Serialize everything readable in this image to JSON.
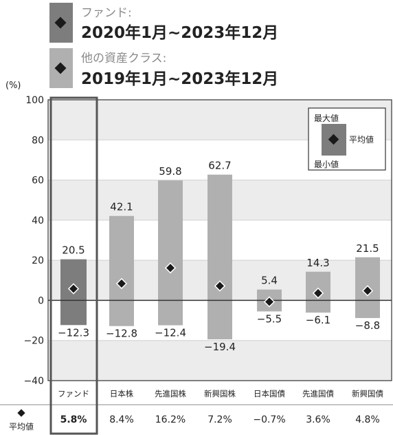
{
  "legend_top": {
    "fund_label": "ファンド:",
    "fund_period": "2020年1月~2023年12月",
    "other_label": "他の資産クラス:",
    "other_period": "2019年1月~2023年12月"
  },
  "legend_box": {
    "max_label": "最大値",
    "avg_label": "平均値",
    "min_label": "最小値"
  },
  "avg_row_label": "平均値",
  "colors": {
    "fund_bar": "#7d7d7d",
    "other_bar": "#b0b0b0",
    "marker": "#1a1a1a",
    "highlight_border": "#555555",
    "band": "#ececec"
  },
  "chart_data": {
    "type": "bar",
    "ylabel": "(%)",
    "ylim": [
      -40,
      100
    ],
    "yticks": [
      "100",
      "80",
      "60",
      "40",
      "20",
      "0",
      "−20",
      "−40"
    ],
    "categories": [
      "ファンド",
      "日本株",
      "先進国株",
      "新興国株",
      "日本国債",
      "先進国債",
      "新興国債"
    ],
    "max": [
      20.5,
      42.1,
      59.8,
      62.7,
      5.4,
      14.3,
      21.5
    ],
    "min": [
      -12.3,
      -12.8,
      -12.4,
      -19.4,
      -5.5,
      -6.1,
      -8.8
    ],
    "avg": [
      5.8,
      8.4,
      16.2,
      7.2,
      -0.7,
      3.6,
      4.8
    ],
    "max_labels": [
      "20.5",
      "42.1",
      "59.8",
      "62.7",
      "5.4",
      "14.3",
      "21.5"
    ],
    "min_labels": [
      "−12.3",
      "−12.8",
      "−12.4",
      "−19.4",
      "−5.5",
      "−6.1",
      "−8.8"
    ],
    "avg_labels": [
      "5.8%",
      "8.4%",
      "16.2%",
      "7.2%",
      "−0.7%",
      "3.6%",
      "4.8%"
    ]
  }
}
